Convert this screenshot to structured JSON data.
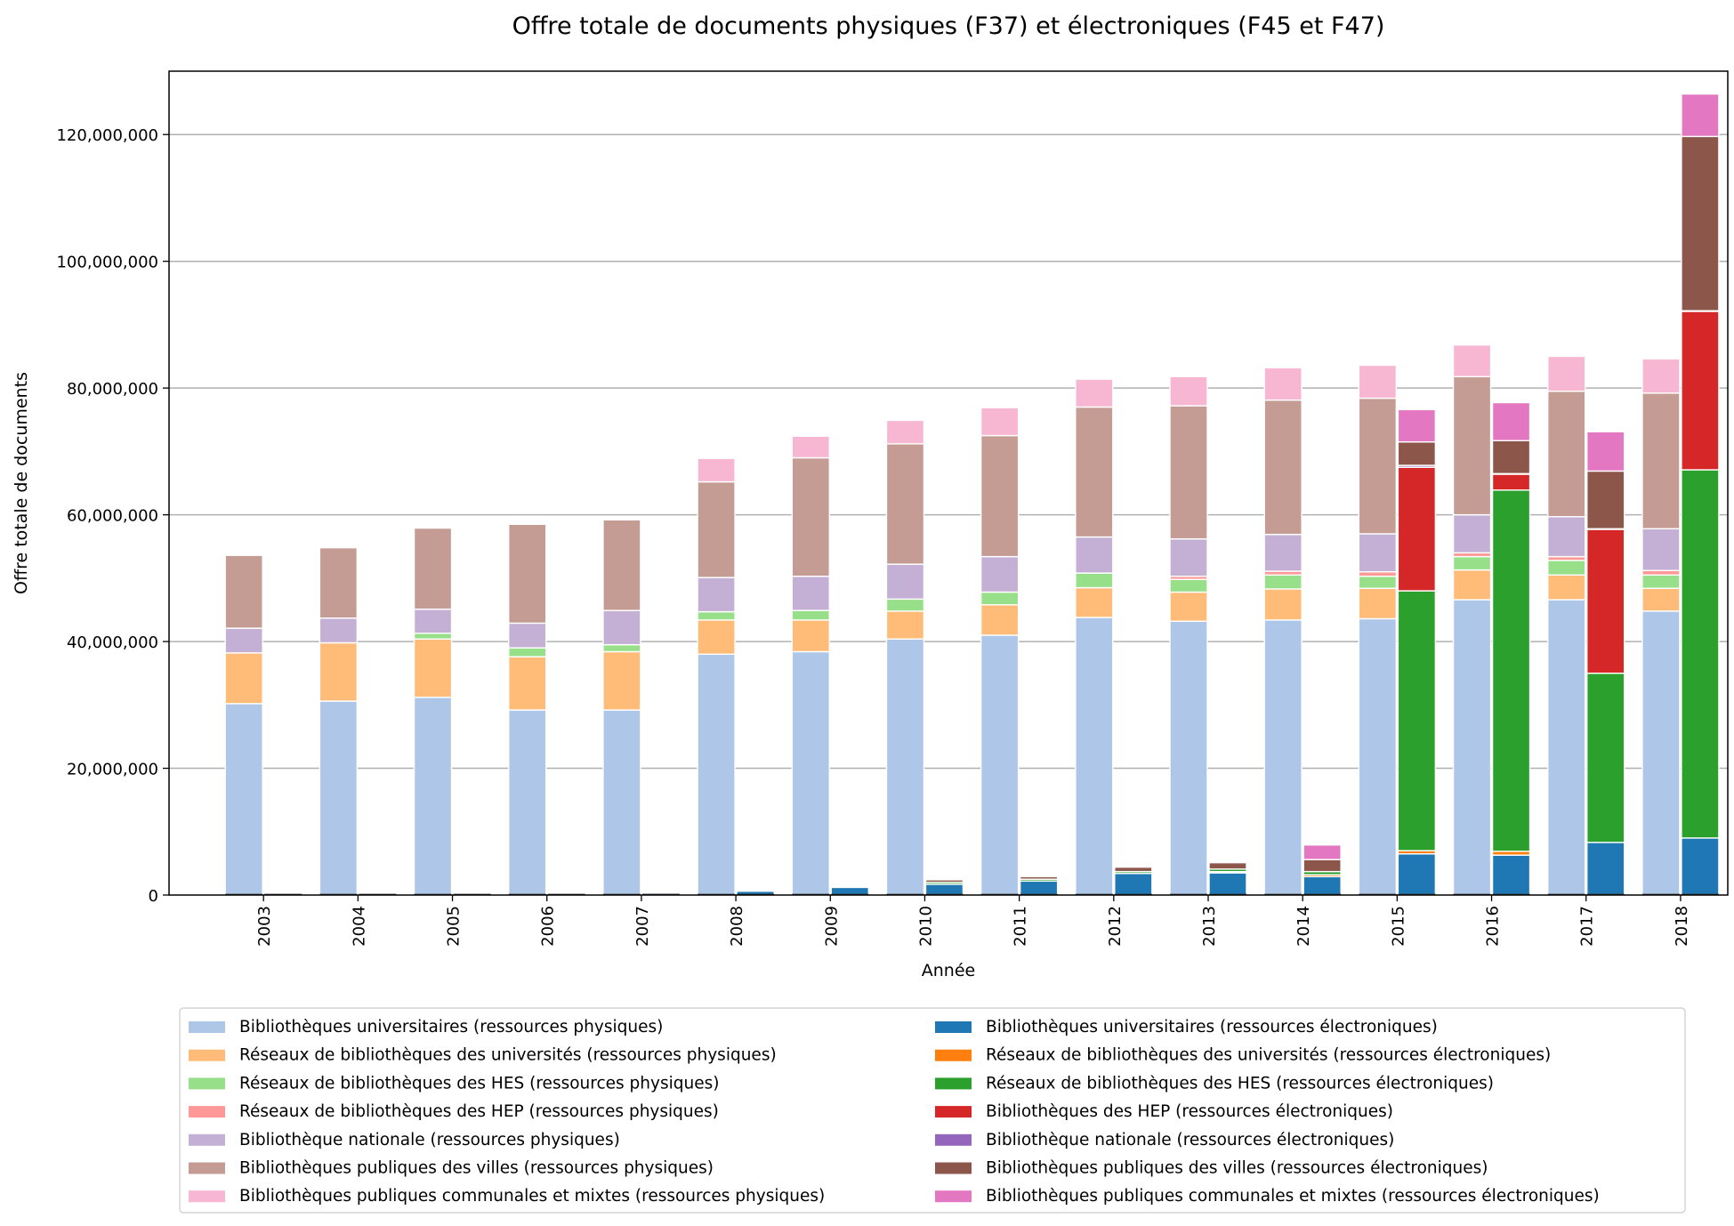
{
  "chart_data": {
    "type": "bar",
    "stacked": true,
    "title": "Offre totale de documents physiques (F37) et électroniques (F45 et F47)",
    "xlabel": "Année",
    "ylabel": "Offre totale de documents",
    "ylim": [
      0,
      130000000
    ],
    "yticks": [
      0,
      20000000,
      40000000,
      60000000,
      80000000,
      100000000,
      120000000
    ],
    "ytick_labels": [
      "0",
      "20,000,000",
      "40,000,000",
      "60,000,000",
      "80,000,000",
      "100,000,000",
      "120,000,000"
    ],
    "grid": "horizontal",
    "legend_position": "bottom",
    "categories": [
      "2003",
      "2004",
      "2005",
      "2006",
      "2007",
      "2008",
      "2009",
      "2010",
      "2011",
      "2012",
      "2013",
      "2014",
      "2015",
      "2016",
      "2017",
      "2018"
    ],
    "groups": [
      {
        "name": "physiques",
        "series": [
          {
            "name": "Bibliothèques universitaires (ressources physiques)",
            "color": "#aec7e8",
            "values": [
              30200000,
              30600000,
              31200000,
              29200000,
              29200000,
              38000000,
              38400000,
              40400000,
              41000000,
              43800000,
              43200000,
              43400000,
              43600000,
              46600000,
              46600000,
              44800000
            ]
          },
          {
            "name": "Réseaux de bibliothèques des universités (ressources physiques)",
            "color": "#ffbb78",
            "values": [
              8000000,
              9200000,
              9200000,
              8400000,
              9200000,
              5400000,
              5000000,
              4400000,
              4800000,
              4700000,
              4600000,
              4900000,
              4800000,
              4700000,
              3900000,
              3600000
            ]
          },
          {
            "name": "Réseaux de bibliothèques des HES (ressources physiques)",
            "color": "#98df8a",
            "values": [
              0,
              0,
              900000,
              1400000,
              1100000,
              1300000,
              1500000,
              1900000,
              2000000,
              2300000,
              2000000,
              2200000,
              1900000,
              2100000,
              2300000,
              2100000
            ]
          },
          {
            "name": "Réseaux de bibliothèques des HEP (ressources physiques)",
            "color": "#ff9896",
            "values": [
              0,
              0,
              0,
              0,
              0,
              0,
              0,
              0,
              0,
              0,
              500000,
              600000,
              700000,
              600000,
              600000,
              700000
            ]
          },
          {
            "name": "Bibliothèque nationale (ressources physiques)",
            "color": "#c5b0d5",
            "values": [
              3900000,
              3900000,
              3800000,
              3900000,
              5400000,
              5400000,
              5400000,
              5500000,
              5600000,
              5700000,
              5900000,
              5800000,
              6000000,
              6000000,
              6300000,
              6600000
            ]
          },
          {
            "name": "Bibliothèques publiques des villes (ressources physiques)",
            "color": "#c49c94",
            "values": [
              11500000,
              11100000,
              12800000,
              15600000,
              14300000,
              15100000,
              18700000,
              19000000,
              19100000,
              20500000,
              21000000,
              21200000,
              21400000,
              21800000,
              19800000,
              21400000
            ]
          },
          {
            "name": "Bibliothèques publiques communales et mixtes (ressources physiques)",
            "color": "#f7b6d2",
            "values": [
              0,
              0,
              0,
              0,
              0,
              3700000,
              3400000,
              3700000,
              4400000,
              4400000,
              4600000,
              5100000,
              5200000,
              5000000,
              5500000,
              5400000
            ]
          }
        ]
      },
      {
        "name": "électroniques",
        "series": [
          {
            "name": "Bibliothèques universitaires (ressources électroniques)",
            "color": "#1f77b4",
            "values": [
              0,
              0,
              0,
              0,
              300000,
              600000,
              1200000,
              1700000,
              2200000,
              3400000,
              3500000,
              2900000,
              6500000,
              6300000,
              8300000,
              9000000
            ]
          },
          {
            "name": "Réseaux de bibliothèques des universités (ressources électroniques)",
            "color": "#ff7f0e",
            "values": [
              0,
              0,
              0,
              0,
              0,
              0,
              0,
              0,
              0,
              0,
              200000,
              300000,
              500000,
              600000,
              0,
              0
            ]
          },
          {
            "name": "Réseaux de bibliothèques des HES (ressources électroniques)",
            "color": "#2ca02c",
            "values": [
              0,
              0,
              0,
              0,
              0,
              0,
              0,
              300000,
              300000,
              300000,
              400000,
              500000,
              41000000,
              57000000,
              26700000,
              58100000
            ]
          },
          {
            "name": "Bibliothèques des HEP (ressources électroniques)",
            "color": "#d62728",
            "values": [
              0,
              0,
              0,
              0,
              0,
              0,
              0,
              0,
              0,
              0,
              0,
              0,
              19500000,
              2500000,
              22700000,
              25000000
            ]
          },
          {
            "name": "Bibliothèque nationale (ressources électroniques)",
            "color": "#9467bd",
            "values": [
              0,
              0,
              0,
              0,
              0,
              0,
              0,
              0,
              0,
              0,
              0,
              0,
              300000,
              100000,
              100000,
              100000
            ]
          },
          {
            "name": "Bibliothèques publiques des villes (ressources électroniques)",
            "color": "#8c564b",
            "values": [
              0,
              0,
              0,
              0,
              0,
              0,
              0,
              400000,
              400000,
              700000,
              1000000,
              1900000,
              3700000,
              5200000,
              9100000,
              27500000
            ]
          },
          {
            "name": "Bibliothèques publiques communales et mixtes (ressources électroniques)",
            "color": "#e377c2",
            "values": [
              0,
              0,
              0,
              0,
              0,
              0,
              0,
              0,
              0,
              0,
              0,
              2300000,
              5100000,
              6000000,
              6200000,
              6700000
            ]
          }
        ]
      }
    ]
  }
}
